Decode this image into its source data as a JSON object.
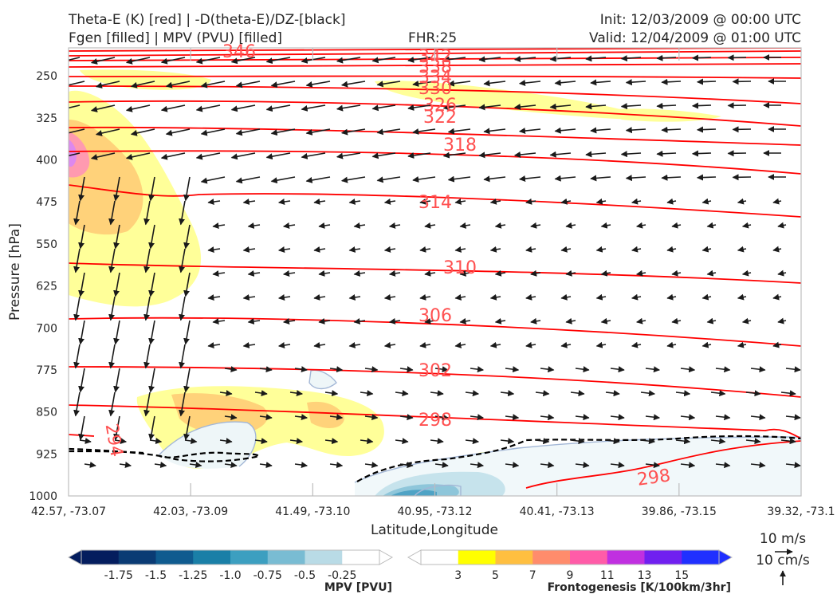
{
  "header": {
    "title_left_1": "Theta-E (K) [red] | -D(theta-E)/DZ-[black]",
    "title_left_2": "Fgen [filled] | MPV (PVU) [filled]",
    "fhr": "FHR:25",
    "init": "Init: 12/03/2009 @ 00:00 UTC",
    "valid": "Valid: 12/04/2009 @ 01:00 UTC"
  },
  "chart_data": {
    "type": "cross-section",
    "xlabel": "Latitude,Longitude",
    "ylabel": "Pressure [hPa]",
    "ylim": [
      1000,
      200
    ],
    "y_ticks": [
      "250",
      "325",
      "400",
      "475",
      "550",
      "625",
      "700",
      "775",
      "850",
      "925",
      "1000"
    ],
    "x_ticks": [
      "42.57, -73.07",
      "42.03, -73.09",
      "41.49, -73.10",
      "40.95, -73.12",
      "40.41, -73.13",
      "39.86, -73.15",
      "39.32, -73.1"
    ],
    "theta_e_contours": {
      "color": "#ff0000",
      "labels": [
        "346",
        "342",
        "338",
        "334",
        "330",
        "326",
        "322",
        "318",
        "314",
        "310",
        "306",
        "302",
        "298",
        "294",
        "298"
      ]
    },
    "stability_contour_color": "#000000",
    "fgen_colorbar": {
      "label": "Frontogenesis [K/100km/3hr]",
      "ticks": [
        "3",
        "5",
        "7",
        "9",
        "11",
        "13",
        "15"
      ],
      "colors": [
        "#ffffff",
        "#ffff00",
        "#ffbf40",
        "#ff8c6c",
        "#ff5ca8",
        "#c030e0",
        "#7020f0",
        "#2030ff"
      ]
    },
    "mpv_colorbar": {
      "label": "MPV [PVU]",
      "ticks": [
        "-1.75",
        "-1.5",
        "-1.25",
        "-1.0",
        "-0.75",
        "-0.5",
        "-0.25"
      ],
      "colors": [
        "#041d5e",
        "#0a3b74",
        "#0f5b8f",
        "#1a7fa7",
        "#3c9fc0",
        "#79bcd3",
        "#b9dbe6",
        "#ffffff"
      ]
    },
    "vector_key": {
      "horizontal": "10 m/s",
      "vertical": "10 cm/s"
    }
  }
}
